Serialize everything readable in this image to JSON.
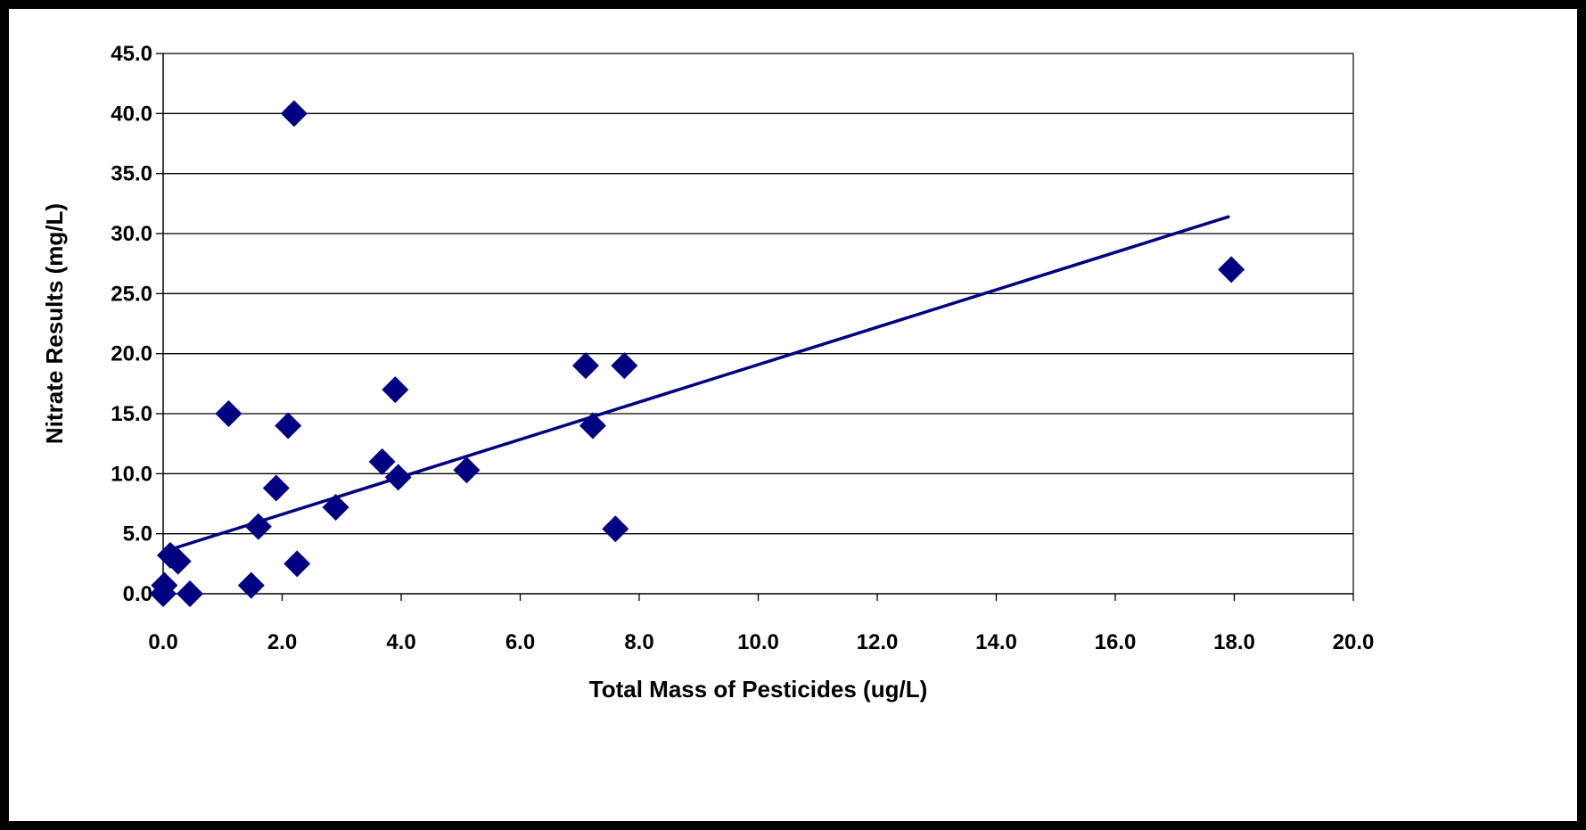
{
  "chart_data": {
    "type": "scatter",
    "title": "",
    "xlabel": "Total Mass of Pesticides (ug/L)",
    "ylabel": "Nitrate Results (mg/L)",
    "xlim": [
      0,
      20
    ],
    "ylim": [
      0,
      45
    ],
    "x_ticks": [
      "0.0",
      "2.0",
      "4.0",
      "6.0",
      "8.0",
      "10.0",
      "12.0",
      "14.0",
      "16.0",
      "18.0",
      "20.0"
    ],
    "y_ticks": [
      "0.0",
      "5.0",
      "10.0",
      "15.0",
      "20.0",
      "25.0",
      "30.0",
      "35.0",
      "40.0",
      "45.0"
    ],
    "grid": "horizontal",
    "legend": "none",
    "marker_color": "#000080",
    "trendline_color": "#000080",
    "points": [
      {
        "x": 0.0,
        "y": 0.0
      },
      {
        "x": 0.02,
        "y": 0.7
      },
      {
        "x": 0.12,
        "y": 3.2
      },
      {
        "x": 0.25,
        "y": 2.7
      },
      {
        "x": 0.45,
        "y": 0.0
      },
      {
        "x": 1.1,
        "y": 15.0
      },
      {
        "x": 1.48,
        "y": 0.7
      },
      {
        "x": 1.6,
        "y": 5.6
      },
      {
        "x": 1.9,
        "y": 8.8
      },
      {
        "x": 2.1,
        "y": 14.0
      },
      {
        "x": 2.2,
        "y": 40.0
      },
      {
        "x": 2.25,
        "y": 2.5
      },
      {
        "x": 2.9,
        "y": 7.2
      },
      {
        "x": 3.68,
        "y": 11.0
      },
      {
        "x": 3.9,
        "y": 17.0
      },
      {
        "x": 3.95,
        "y": 9.7
      },
      {
        "x": 5.1,
        "y": 10.3
      },
      {
        "x": 7.1,
        "y": 19.0
      },
      {
        "x": 7.22,
        "y": 14.0
      },
      {
        "x": 7.6,
        "y": 5.4
      },
      {
        "x": 7.75,
        "y": 19.0
      },
      {
        "x": 17.95,
        "y": 27.0
      }
    ],
    "trendline": {
      "x": [
        0.0,
        17.9
      ],
      "y": [
        3.5,
        31.4
      ]
    }
  }
}
